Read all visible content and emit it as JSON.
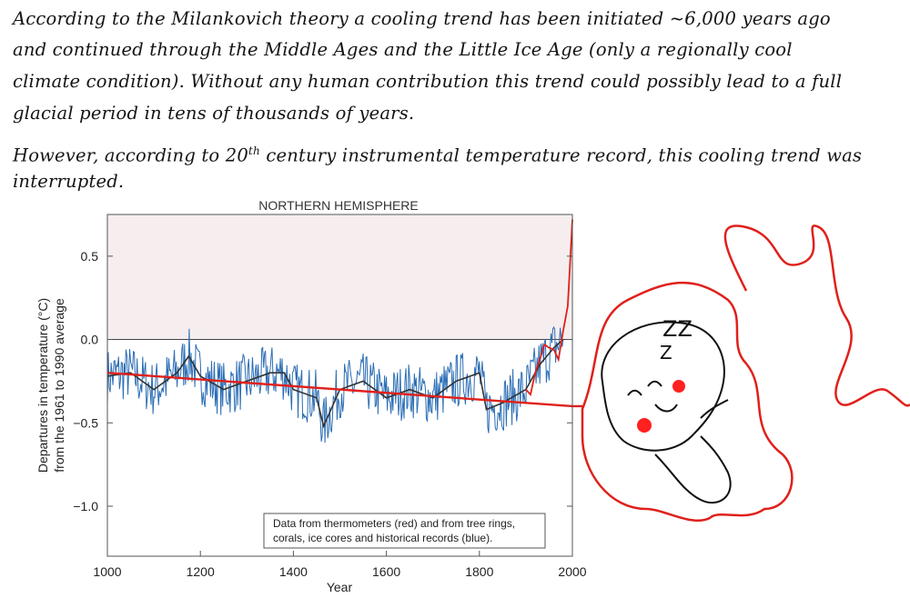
{
  "notes": {
    "line1": "According to the Milankovich theory a cooling trend has been initiated ~6,000 years ago",
    "line2": "and continued through the Middle Ages and the Little Ice Age (only a regionally cool",
    "line3": "climate condition). Without any human contribution this trend could possibly lead to a full",
    "line4": "glacial period in tens of thousands of years.",
    "line5_pre": "However, according to 20",
    "line5_sup": "th",
    "line5_post": " century instrumental temperature record, this cooling trend was",
    "line6": "interrupted."
  },
  "doodle": {
    "zz": "ZZ",
    "z": "Z"
  },
  "chart_data": {
    "type": "line",
    "title": "NORTHERN HEMISPHERE",
    "xlabel": "Year",
    "ylabel_line1": "Departures in temperature (°C)",
    "ylabel_line2": "from the 1961 to 1990 average",
    "xlim": [
      1000,
      2000
    ],
    "ylim": [
      -1.3,
      0.75
    ],
    "xticks": [
      1000,
      1200,
      1400,
      1600,
      1800,
      2000
    ],
    "yticks": [
      0.5,
      0.0,
      -0.5,
      -1.0
    ],
    "ytick_labels": [
      "0.5",
      "0.0",
      "−0.5",
      "−1.0"
    ],
    "legend_line1": "Data from thermometers (red) and from tree rings,",
    "legend_line2": "corals, ice cores and historical records (blue).",
    "legend_position": "bottom-right",
    "grid": false,
    "colors": {
      "proxy": "#2a6db5",
      "smooth": "#333333",
      "instrumental": "#e0201b",
      "trend": "#e0201b",
      "shade": "#f6eeee"
    },
    "series": [
      {
        "name": "thermometers (red)",
        "x": [
          1900,
          1910,
          1920,
          1930,
          1940,
          1950,
          1960,
          1970,
          1980,
          1990,
          1995,
          2000
        ],
        "y": [
          -0.3,
          -0.33,
          -0.2,
          -0.12,
          -0.03,
          -0.05,
          -0.06,
          -0.12,
          0.05,
          0.2,
          0.45,
          0.72
        ]
      },
      {
        "name": "trend",
        "x": [
          1000,
          1900,
          2000
        ],
        "y": [
          -0.2,
          -0.38,
          -0.4
        ]
      },
      {
        "name": "smoothed proxy",
        "x": [
          1000,
          1050,
          1100,
          1150,
          1175,
          1200,
          1250,
          1300,
          1350,
          1380,
          1400,
          1450,
          1465,
          1500,
          1550,
          1600,
          1650,
          1700,
          1750,
          1800,
          1815,
          1850,
          1900,
          1930,
          1960,
          1980
        ],
        "y": [
          -0.22,
          -0.2,
          -0.3,
          -0.2,
          -0.1,
          -0.22,
          -0.3,
          -0.25,
          -0.2,
          -0.2,
          -0.3,
          -0.35,
          -0.52,
          -0.3,
          -0.25,
          -0.35,
          -0.3,
          -0.35,
          -0.25,
          -0.2,
          -0.42,
          -0.38,
          -0.3,
          -0.15,
          -0.05,
          0.0
        ]
      }
    ]
  }
}
